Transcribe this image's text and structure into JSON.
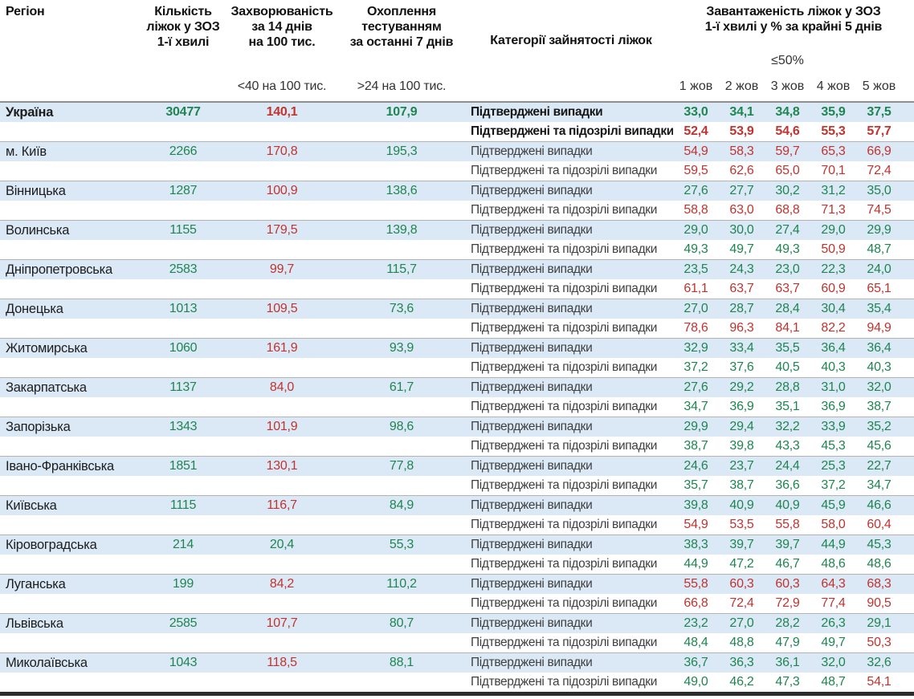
{
  "colors": {
    "green": "#1f8550",
    "red": "#c2332e",
    "row_highlight": "#dbe9f6"
  },
  "header": {
    "region": "Регіон",
    "beds": "Кількість\nліжок у ЗОЗ\n1-ї хвилі",
    "incidence": "Захворюваність\nза 14 днів\nна 100 тис.",
    "testing": "Охоплення\nтестуванням\nза останні 7 днів",
    "categories": "Категорії зайнятості ліжок",
    "load": "Завантаженість ліжок у ЗОЗ\n1-ї хвилі у % за крайні 5 днів",
    "threshold_incidence": "<40 на 100 тис.",
    "threshold_testing": ">24 на 100 тис.",
    "threshold_load": "≤50%",
    "dates": [
      "1 жов",
      "2 жов",
      "3 жов",
      "4 жов",
      "5 жов"
    ]
  },
  "thresholds": {
    "incidence_red_at_or_above": 40,
    "testing_green_above": 24,
    "load_red_above": 50
  },
  "regions": [
    {
      "name": "Україна",
      "bold": true,
      "beds": "30477",
      "incidence": "140,1",
      "testing": "107,9",
      "rows": [
        {
          "label": "Підтверджені випадки",
          "values": [
            "33,0",
            "34,1",
            "34,8",
            "35,9",
            "37,5"
          ]
        },
        {
          "label": "Підтверджені та підозрілі випадки",
          "values": [
            "52,4",
            "53,9",
            "54,6",
            "55,3",
            "57,7"
          ]
        }
      ]
    },
    {
      "name": "м. Київ",
      "bold": false,
      "beds": "2266",
      "incidence": "170,8",
      "testing": "195,3",
      "rows": [
        {
          "label": "Підтверджені випадки",
          "values": [
            "54,9",
            "58,3",
            "59,7",
            "65,3",
            "66,9"
          ]
        },
        {
          "label": "Підтверджені та підозрілі випадки",
          "values": [
            "59,5",
            "62,6",
            "65,0",
            "70,1",
            "72,4"
          ]
        }
      ]
    },
    {
      "name": "Вінницька",
      "bold": false,
      "beds": "1287",
      "incidence": "100,9",
      "testing": "138,6",
      "rows": [
        {
          "label": "Підтверджені випадки",
          "values": [
            "27,6",
            "27,7",
            "30,2",
            "31,2",
            "35,0"
          ]
        },
        {
          "label": "Підтверджені та підозрілі випадки",
          "values": [
            "58,8",
            "63,0",
            "68,8",
            "71,3",
            "74,5"
          ]
        }
      ]
    },
    {
      "name": "Волинська",
      "bold": false,
      "beds": "1155",
      "incidence": "179,5",
      "testing": "139,8",
      "rows": [
        {
          "label": "Підтверджені випадки",
          "values": [
            "29,0",
            "30,0",
            "27,4",
            "29,0",
            "29,9"
          ]
        },
        {
          "label": "Підтверджені та підозрілі випадки",
          "values": [
            "49,3",
            "49,7",
            "49,3",
            "50,9",
            "48,7"
          ]
        }
      ]
    },
    {
      "name": "Дніпропетровська",
      "bold": false,
      "beds": "2583",
      "incidence": "99,7",
      "testing": "115,7",
      "rows": [
        {
          "label": "Підтверджені випадки",
          "values": [
            "23,5",
            "24,3",
            "23,0",
            "22,3",
            "24,0"
          ]
        },
        {
          "label": "Підтверджені та підозрілі випадки",
          "values": [
            "61,1",
            "63,7",
            "63,7",
            "60,9",
            "65,1"
          ]
        }
      ]
    },
    {
      "name": "Донецька",
      "bold": false,
      "beds": "1013",
      "incidence": "109,5",
      "testing": "73,6",
      "rows": [
        {
          "label": "Підтверджені випадки",
          "values": [
            "27,0",
            "28,7",
            "28,4",
            "30,4",
            "35,4"
          ]
        },
        {
          "label": "Підтверджені та підозрілі випадки",
          "values": [
            "78,6",
            "96,3",
            "84,1",
            "82,2",
            "94,9"
          ]
        }
      ]
    },
    {
      "name": "Житомирська",
      "bold": false,
      "beds": "1060",
      "incidence": "161,9",
      "testing": "93,9",
      "rows": [
        {
          "label": "Підтверджені випадки",
          "values": [
            "32,9",
            "33,4",
            "35,5",
            "36,4",
            "36,4"
          ]
        },
        {
          "label": "Підтверджені та підозрілі випадки",
          "values": [
            "37,2",
            "37,6",
            "40,5",
            "40,3",
            "40,3"
          ]
        }
      ]
    },
    {
      "name": "Закарпатська",
      "bold": false,
      "beds": "1137",
      "incidence": "84,0",
      "testing": "61,7",
      "rows": [
        {
          "label": "Підтверджені випадки",
          "values": [
            "27,6",
            "29,2",
            "28,8",
            "31,0",
            "32,0"
          ]
        },
        {
          "label": "Підтверджені та підозрілі випадки",
          "values": [
            "34,7",
            "36,9",
            "35,1",
            "36,9",
            "38,7"
          ]
        }
      ]
    },
    {
      "name": "Запорізька",
      "bold": false,
      "beds": "1343",
      "incidence": "101,9",
      "testing": "98,6",
      "rows": [
        {
          "label": "Підтверджені випадки",
          "values": [
            "29,9",
            "29,4",
            "32,2",
            "33,9",
            "35,2"
          ]
        },
        {
          "label": "Підтверджені та підозрілі випадки",
          "values": [
            "38,7",
            "39,8",
            "43,3",
            "45,3",
            "45,6"
          ]
        }
      ]
    },
    {
      "name": "Івано-Франківська",
      "bold": false,
      "beds": "1851",
      "incidence": "130,1",
      "testing": "77,8",
      "rows": [
        {
          "label": "Підтверджені випадки",
          "values": [
            "24,6",
            "23,7",
            "24,4",
            "25,3",
            "22,7"
          ]
        },
        {
          "label": "Підтверджені та підозрілі випадки",
          "values": [
            "35,7",
            "38,7",
            "36,6",
            "37,2",
            "34,7"
          ]
        }
      ]
    },
    {
      "name": "Київська",
      "bold": false,
      "beds": "1115",
      "incidence": "116,7",
      "testing": "84,9",
      "rows": [
        {
          "label": "Підтверджені випадки",
          "values": [
            "39,8",
            "40,9",
            "40,9",
            "45,9",
            "46,6"
          ]
        },
        {
          "label": "Підтверджені та підозрілі випадки",
          "values": [
            "54,9",
            "53,5",
            "55,8",
            "58,0",
            "60,4"
          ]
        }
      ]
    },
    {
      "name": "Кіровоградська",
      "bold": false,
      "beds": "214",
      "incidence": "20,4",
      "testing": "55,3",
      "rows": [
        {
          "label": "Підтверджені випадки",
          "values": [
            "38,3",
            "39,7",
            "39,7",
            "44,9",
            "45,3"
          ]
        },
        {
          "label": "Підтверджені та підозрілі випадки",
          "values": [
            "44,9",
            "47,2",
            "46,7",
            "48,6",
            "48,6"
          ]
        }
      ]
    },
    {
      "name": "Луганська",
      "bold": false,
      "beds": "199",
      "incidence": "84,2",
      "testing": "110,2",
      "rows": [
        {
          "label": "Підтверджені випадки",
          "values": [
            "55,8",
            "60,3",
            "60,3",
            "64,3",
            "68,3"
          ]
        },
        {
          "label": "Підтверджені та підозрілі випадки",
          "values": [
            "66,8",
            "72,4",
            "72,9",
            "77,4",
            "90,5"
          ]
        }
      ]
    },
    {
      "name": "Львівська",
      "bold": false,
      "beds": "2585",
      "incidence": "107,7",
      "testing": "80,7",
      "rows": [
        {
          "label": "Підтверджені випадки",
          "values": [
            "23,2",
            "27,0",
            "28,2",
            "26,3",
            "29,1"
          ]
        },
        {
          "label": "Підтверджені та підозрілі випадки",
          "values": [
            "48,4",
            "48,8",
            "47,9",
            "49,7",
            "50,3"
          ]
        }
      ]
    },
    {
      "name": "Миколаївська",
      "bold": false,
      "beds": "1043",
      "incidence": "118,5",
      "testing": "88,1",
      "rows": [
        {
          "label": "Підтверджені випадки",
          "values": [
            "36,7",
            "36,3",
            "36,1",
            "32,0",
            "32,6"
          ]
        },
        {
          "label": "Підтверджені та підозрілі випадки",
          "values": [
            "49,0",
            "46,2",
            "47,3",
            "48,7",
            "54,1"
          ]
        }
      ]
    }
  ]
}
